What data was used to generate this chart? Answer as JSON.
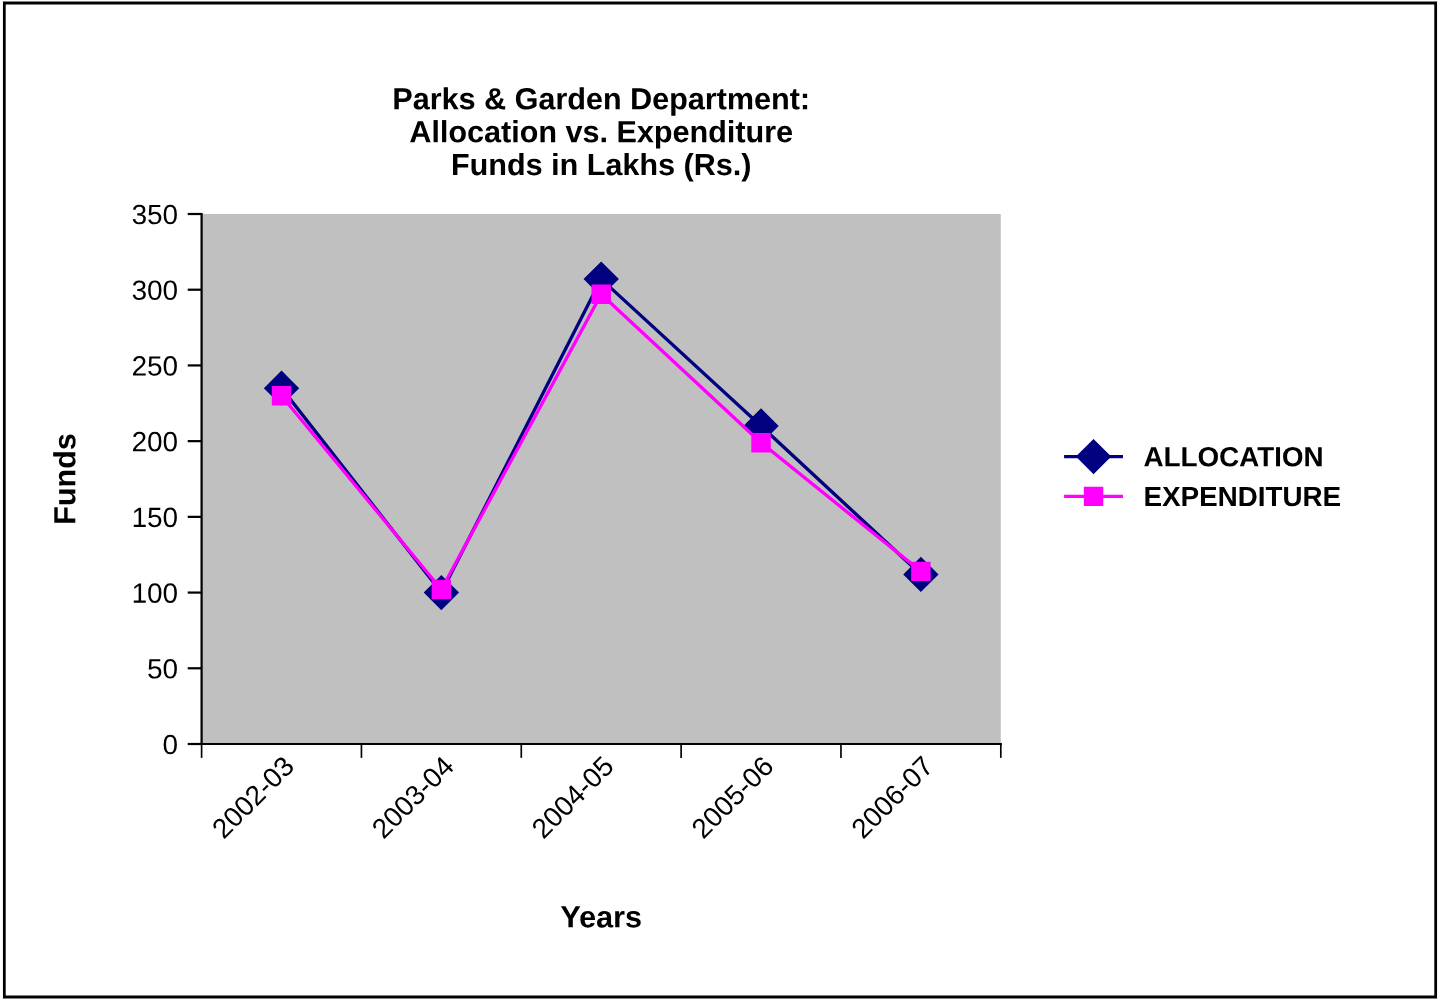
{
  "chart_data": {
    "type": "line",
    "title": "Parks & Garden Department:\nAllocation vs. Expenditure\nFunds in Lakhs (Rs.)",
    "xlabel": "Years",
    "ylabel": "Funds",
    "categories": [
      "2002-03",
      "2003-04",
      "2004-05",
      "2005-06",
      "2006-07"
    ],
    "series": [
      {
        "name": "ALLOCATION",
        "color": "#000080",
        "marker": "diamond",
        "values": [
          235,
          100,
          307,
          210,
          112
        ]
      },
      {
        "name": "EXPENDITURE",
        "color": "#ff00ff",
        "marker": "square",
        "values": [
          230,
          102,
          297,
          199,
          114
        ]
      }
    ],
    "ylim": [
      0,
      350
    ],
    "yticks": [
      0,
      50,
      100,
      150,
      200,
      250,
      300,
      350
    ],
    "grid": false,
    "legend": "right"
  }
}
